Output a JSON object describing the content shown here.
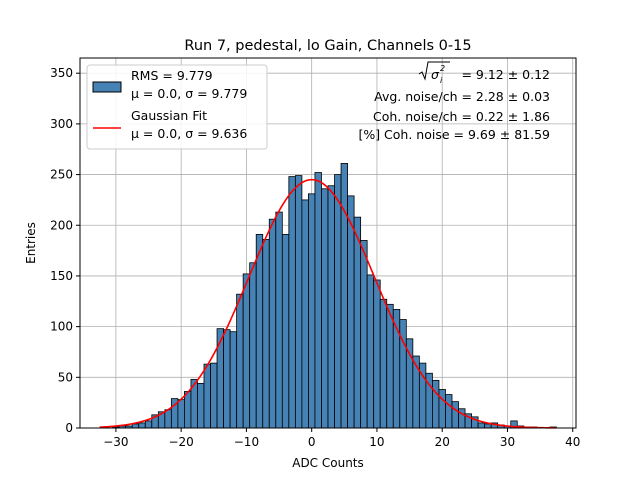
{
  "chart_data": {
    "type": "bar",
    "title": "Run 7, pedestal, lo Gain, Channels 0-15",
    "xlabel": "ADC Counts",
    "ylabel": "Entries",
    "xlim": [
      -35.5,
      40.5
    ],
    "ylim": [
      0,
      365
    ],
    "xticks": [
      -30,
      -20,
      -10,
      0,
      10,
      20,
      30,
      40
    ],
    "yticks": [
      0,
      50,
      100,
      150,
      200,
      250,
      300,
      350
    ],
    "xtick_labels": [
      "−30",
      "−20",
      "−10",
      "0",
      "10",
      "20",
      "30",
      "40"
    ],
    "ytick_labels": [
      "0",
      "50",
      "100",
      "150",
      "200",
      "250",
      "300",
      "350"
    ],
    "grid": true,
    "legend_position": "top-left",
    "bin_width": 1,
    "bin_centers": [
      -32,
      -31,
      -30,
      -29,
      -28,
      -27,
      -26,
      -25,
      -24,
      -23,
      -22,
      -21,
      -20,
      -19,
      -18,
      -17,
      -16,
      -15,
      -14,
      -13,
      -12,
      -11,
      -10,
      -9,
      -8,
      -7,
      -6,
      -5,
      -4,
      -3,
      -2,
      -1,
      0,
      1,
      2,
      3,
      4,
      5,
      6,
      7,
      8,
      9,
      10,
      11,
      12,
      13,
      14,
      15,
      16,
      17,
      18,
      19,
      20,
      21,
      22,
      23,
      24,
      25,
      26,
      27,
      28,
      29,
      30,
      31,
      32,
      33,
      34,
      35,
      36,
      37
    ],
    "series": [
      {
        "name": "RMS = 9.779",
        "name_line2": "μ = 0.0, σ = 9.779",
        "kind": "histogram",
        "color": "#4682b4",
        "edgecolor": "#000000",
        "values": [
          0,
          0,
          1,
          2,
          2,
          4,
          5,
          7,
          13,
          16,
          18,
          29,
          28,
          36,
          48,
          44,
          63,
          64,
          98,
          97,
          95,
          132,
          152,
          163,
          191,
          186,
          206,
          213,
          191,
          248,
          249,
          225,
          231,
          252,
          236,
          239,
          250,
          261,
          229,
          208,
          185,
          151,
          146,
          127,
          122,
          117,
          107,
          88,
          71,
          64,
          54,
          47,
          38,
          33,
          26,
          19,
          14,
          11,
          5,
          4,
          5,
          3,
          2,
          7,
          2,
          1,
          1,
          0,
          0,
          1
        ]
      },
      {
        "name": "Gaussian Fit",
        "name_line2": "μ = 0.0, σ = 9.636",
        "kind": "line",
        "color": "#ff0000",
        "mu": 0.0,
        "sigma": 9.636,
        "amplitude": 245,
        "x_range": [
          -32.5,
          37.5
        ]
      }
    ],
    "annotations": {
      "sigma_label": "= 9.12 ± 0.12",
      "avg_noise": "Avg. noise/ch = 2.28 ± 0.03",
      "coh_noise": "Coh. noise/ch = 0.22 ± 1.86",
      "coh_pct": "[%] Coh. noise = 9.69 ± 81.59"
    }
  }
}
